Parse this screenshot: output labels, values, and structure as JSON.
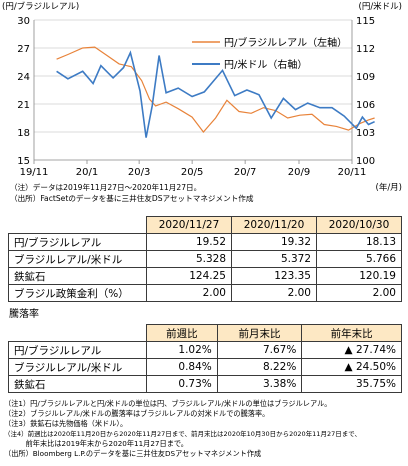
{
  "chart_data": {
    "type": "line",
    "left_axis_label": "(円/ブラジルレアル)",
    "right_axis_label": "(円/米ドル)",
    "x_unit_label": "(年/月)",
    "ylim_left": [
      15,
      30
    ],
    "ylim_right": [
      100,
      115
    ],
    "left_ticks": [
      "30",
      "27",
      "24",
      "21",
      "18",
      "15"
    ],
    "right_ticks": [
      "115",
      "112",
      "109",
      "106",
      "103",
      "100"
    ],
    "x_ticks": [
      "19/11",
      "20/1",
      "20/3",
      "20/5",
      "20/7",
      "20/9",
      "20/11"
    ],
    "grid": true,
    "legend_position": "top-right",
    "series": [
      {
        "name": "円/ブラジルレアル（左軸）",
        "axis": "left",
        "color": "#e8833a",
        "points": [
          [
            "2019-11-27",
            25.8
          ],
          [
            "2019-12-10",
            26.3
          ],
          [
            "2019-12-27",
            27.0
          ],
          [
            "2020-01-10",
            27.1
          ],
          [
            "2020-01-24",
            26.2
          ],
          [
            "2020-02-07",
            25.3
          ],
          [
            "2020-02-21",
            25.0
          ],
          [
            "2020-03-04",
            23.5
          ],
          [
            "2020-03-13",
            21.5
          ],
          [
            "2020-03-20",
            20.8
          ],
          [
            "2020-04-01",
            21.2
          ],
          [
            "2020-04-15",
            20.5
          ],
          [
            "2020-05-01",
            19.6
          ],
          [
            "2020-05-14",
            18.0
          ],
          [
            "2020-05-28",
            19.5
          ],
          [
            "2020-06-10",
            21.4
          ],
          [
            "2020-06-24",
            20.2
          ],
          [
            "2020-07-08",
            20.0
          ],
          [
            "2020-07-22",
            20.6
          ],
          [
            "2020-08-05",
            20.3
          ],
          [
            "2020-08-19",
            19.5
          ],
          [
            "2020-09-02",
            19.8
          ],
          [
            "2020-09-16",
            19.9
          ],
          [
            "2020-09-30",
            18.8
          ],
          [
            "2020-10-14",
            18.6
          ],
          [
            "2020-10-28",
            18.2
          ],
          [
            "2020-11-10",
            18.9
          ],
          [
            "2020-11-20",
            19.3
          ],
          [
            "2020-11-27",
            19.5
          ]
        ]
      },
      {
        "name": "円/米ドル（右軸）",
        "axis": "right",
        "color": "#3d7bc4",
        "points": [
          [
            "2019-11-27",
            109.5
          ],
          [
            "2019-12-10",
            108.7
          ],
          [
            "2019-12-27",
            109.5
          ],
          [
            "2020-01-08",
            108.2
          ],
          [
            "2020-01-17",
            110.1
          ],
          [
            "2020-01-31",
            108.8
          ],
          [
            "2020-02-12",
            109.9
          ],
          [
            "2020-02-20",
            111.5
          ],
          [
            "2020-03-02",
            107.4
          ],
          [
            "2020-03-09",
            102.4
          ],
          [
            "2020-03-16",
            105.8
          ],
          [
            "2020-03-24",
            111.2
          ],
          [
            "2020-04-01",
            107.2
          ],
          [
            "2020-04-15",
            107.7
          ],
          [
            "2020-05-01",
            106.8
          ],
          [
            "2020-05-15",
            107.3
          ],
          [
            "2020-06-05",
            109.6
          ],
          [
            "2020-06-19",
            106.9
          ],
          [
            "2020-07-03",
            107.5
          ],
          [
            "2020-07-17",
            107.0
          ],
          [
            "2020-07-31",
            104.5
          ],
          [
            "2020-08-14",
            106.6
          ],
          [
            "2020-08-28",
            105.4
          ],
          [
            "2020-09-11",
            106.1
          ],
          [
            "2020-09-25",
            105.6
          ],
          [
            "2020-10-09",
            105.6
          ],
          [
            "2020-10-23",
            104.7
          ],
          [
            "2020-11-06",
            103.4
          ],
          [
            "2020-11-13",
            104.6
          ],
          [
            "2020-11-20",
            103.8
          ],
          [
            "2020-11-27",
            104.1
          ]
        ]
      }
    ]
  },
  "notes_chart": [
    "（注）データは2019年11月27日～2020年11月27日。",
    "（出所）FactSetのデータを基に三井住友DSアセットマネジメント作成"
  ],
  "table1": {
    "headers": [
      "2020/11/27",
      "2020/11/20",
      "2020/10/30"
    ],
    "rows": [
      {
        "label": "円/ブラジルレアル",
        "values": [
          "19.52",
          "19.32",
          "18.13"
        ]
      },
      {
        "label": "ブラジルレアル/米ドル",
        "values": [
          "5.328",
          "5.372",
          "5.766"
        ]
      },
      {
        "label": "鉄鉱石",
        "values": [
          "124.25",
          "123.35",
          "120.19"
        ]
      },
      {
        "label": "ブラジル政策金利（%）",
        "values": [
          "2.00",
          "2.00",
          "2.00"
        ]
      }
    ]
  },
  "table2": {
    "title": "騰落率",
    "headers": [
      "前週比",
      "前月末比",
      "前年末比"
    ],
    "rows": [
      {
        "label": "円/ブラジルレアル",
        "values": [
          "1.02%",
          "7.67%",
          "▲ 27.74%"
        ]
      },
      {
        "label": "ブラジルレアル/米ドル",
        "values": [
          "0.84%",
          "8.22%",
          "▲ 24.50%"
        ]
      },
      {
        "label": "鉄鉱石",
        "values": [
          "0.73%",
          "3.38%",
          "35.75%"
        ]
      }
    ]
  },
  "notes_bottom": [
    "（注1）円/ブラジルレアルと円/米ドルの単位は円、ブラジルレアル/米ドルの単位はブラジルレアル。",
    "（注2）ブラジルレアル/米ドルの騰落率はブラジルレアルの対米ドルでの騰落率。",
    "（注3）鉄鉱石は先物価格（米ドル）。",
    "（注4）前週比は2020年11月20日から2020年11月27日まで、前月末比は2020年10月30日から2020年11月27日まで、",
    "　　　前年末比は2019年末から2020年11月27日まで。",
    "（出所）Bloomberg L.P.のデータを基に三井住友DSアセットマネジメント作成"
  ]
}
